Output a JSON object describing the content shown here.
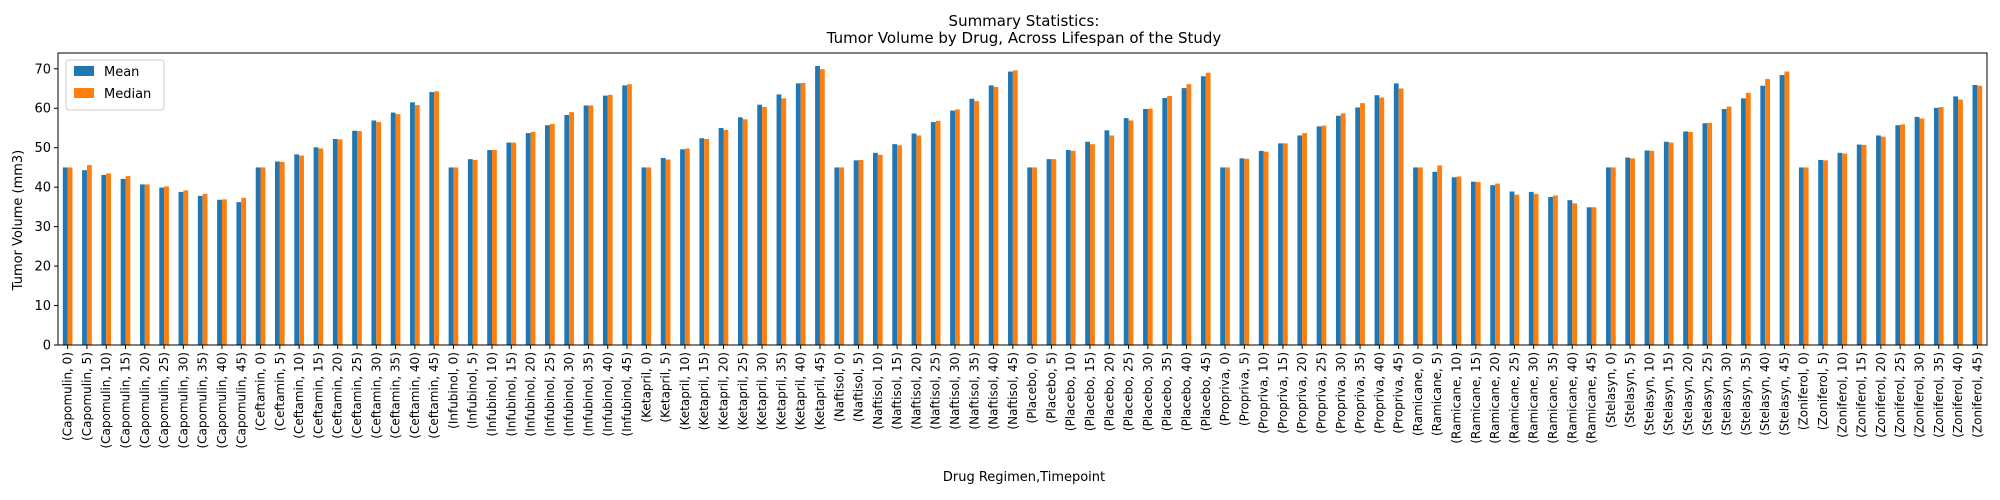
{
  "chart_data": {
    "type": "bar",
    "title": "Summary Statistics:",
    "subtitle": "Tumor Volume by Drug, Across Lifespan of the Study",
    "xlabel": "Drug Regimen,Timepoint",
    "ylabel": "Tumor Volume (mm3)",
    "ylim": [
      0,
      74
    ],
    "yticks": [
      0,
      10,
      20,
      30,
      40,
      50,
      60,
      70
    ],
    "grid": false,
    "legend_position": "top-left",
    "categories": [
      "(Capomulin, 0)",
      "(Capomulin, 5)",
      "(Capomulin, 10)",
      "(Capomulin, 15)",
      "(Capomulin, 20)",
      "(Capomulin, 25)",
      "(Capomulin, 30)",
      "(Capomulin, 35)",
      "(Capomulin, 40)",
      "(Capomulin, 45)",
      "(Ceftamin, 0)",
      "(Ceftamin, 5)",
      "(Ceftamin, 10)",
      "(Ceftamin, 15)",
      "(Ceftamin, 20)",
      "(Ceftamin, 25)",
      "(Ceftamin, 30)",
      "(Ceftamin, 35)",
      "(Ceftamin, 40)",
      "(Ceftamin, 45)",
      "(Infubinol, 0)",
      "(Infubinol, 5)",
      "(Infubinol, 10)",
      "(Infubinol, 15)",
      "(Infubinol, 20)",
      "(Infubinol, 25)",
      "(Infubinol, 30)",
      "(Infubinol, 35)",
      "(Infubinol, 40)",
      "(Infubinol, 45)",
      "(Ketapril, 0)",
      "(Ketapril, 5)",
      "(Ketapril, 10)",
      "(Ketapril, 15)",
      "(Ketapril, 20)",
      "(Ketapril, 25)",
      "(Ketapril, 30)",
      "(Ketapril, 35)",
      "(Ketapril, 40)",
      "(Ketapril, 45)",
      "(Naftisol, 0)",
      "(Naftisol, 5)",
      "(Naftisol, 10)",
      "(Naftisol, 15)",
      "(Naftisol, 20)",
      "(Naftisol, 25)",
      "(Naftisol, 30)",
      "(Naftisol, 35)",
      "(Naftisol, 40)",
      "(Naftisol, 45)",
      "(Placebo, 0)",
      "(Placebo, 5)",
      "(Placebo, 10)",
      "(Placebo, 15)",
      "(Placebo, 20)",
      "(Placebo, 25)",
      "(Placebo, 30)",
      "(Placebo, 35)",
      "(Placebo, 40)",
      "(Placebo, 45)",
      "(Propriva, 0)",
      "(Propriva, 5)",
      "(Propriva, 10)",
      "(Propriva, 15)",
      "(Propriva, 20)",
      "(Propriva, 25)",
      "(Propriva, 30)",
      "(Propriva, 35)",
      "(Propriva, 40)",
      "(Propriva, 45)",
      "(Ramicane, 0)",
      "(Ramicane, 5)",
      "(Ramicane, 10)",
      "(Ramicane, 15)",
      "(Ramicane, 20)",
      "(Ramicane, 25)",
      "(Ramicane, 30)",
      "(Ramicane, 35)",
      "(Ramicane, 40)",
      "(Ramicane, 45)",
      "(Stelasyn, 0)",
      "(Stelasyn, 5)",
      "(Stelasyn, 10)",
      "(Stelasyn, 15)",
      "(Stelasyn, 20)",
      "(Stelasyn, 25)",
      "(Stelasyn, 30)",
      "(Stelasyn, 35)",
      "(Stelasyn, 40)",
      "(Stelasyn, 45)",
      "(Zoniferol, 0)",
      "(Zoniferol, 5)",
      "(Zoniferol, 10)",
      "(Zoniferol, 15)",
      "(Zoniferol, 20)",
      "(Zoniferol, 25)",
      "(Zoniferol, 30)",
      "(Zoniferol, 35)",
      "(Zoniferol, 40)",
      "(Zoniferol, 45)"
    ],
    "series": [
      {
        "name": "Mean",
        "color": "#1f77b4",
        "values": [
          45.0,
          44.3,
          43.1,
          42.1,
          40.7,
          39.9,
          38.8,
          37.8,
          36.8,
          36.2,
          45.0,
          46.5,
          48.3,
          50.1,
          52.2,
          54.3,
          56.9,
          58.9,
          61.5,
          64.1,
          45.0,
          47.1,
          49.4,
          51.3,
          53.7,
          55.7,
          58.3,
          60.7,
          63.2,
          65.8,
          45.0,
          47.4,
          49.6,
          52.4,
          55.0,
          57.7,
          60.9,
          63.5,
          66.3,
          70.7,
          45.0,
          46.8,
          48.7,
          50.9,
          53.6,
          56.5,
          59.4,
          62.4,
          65.8,
          69.3,
          45.0,
          47.1,
          49.4,
          51.5,
          54.4,
          57.5,
          59.8,
          62.6,
          65.1,
          68.1,
          45.0,
          47.3,
          49.2,
          51.1,
          53.1,
          55.4,
          58.1,
          60.2,
          63.3,
          66.3,
          45.0,
          43.9,
          42.5,
          41.4,
          40.5,
          38.9,
          38.8,
          37.5,
          36.7,
          34.9,
          45.0,
          47.5,
          49.3,
          51.5,
          54.1,
          56.2,
          59.8,
          62.5,
          65.7,
          68.4,
          45.0,
          46.9,
          48.7,
          50.8,
          53.1,
          55.7,
          57.8,
          60.1,
          63.0,
          65.9
        ]
      },
      {
        "name": "Median",
        "color": "#ff7f0e",
        "values": [
          45.0,
          45.6,
          43.5,
          42.8,
          40.7,
          40.2,
          39.2,
          38.3,
          36.9,
          37.3,
          45.0,
          46.4,
          48.0,
          49.8,
          52.1,
          54.2,
          56.5,
          58.5,
          60.8,
          64.3,
          45.0,
          46.9,
          49.4,
          51.3,
          54.0,
          56.0,
          59.0,
          60.7,
          63.4,
          66.1,
          45.0,
          47.0,
          49.8,
          52.2,
          54.5,
          57.2,
          60.3,
          62.5,
          66.4,
          69.9,
          45.0,
          46.9,
          48.2,
          50.6,
          53.1,
          56.8,
          59.7,
          61.8,
          65.4,
          69.6,
          45.0,
          47.1,
          49.2,
          50.9,
          53.1,
          56.9,
          59.9,
          63.1,
          66.1,
          69.0,
          45.0,
          47.2,
          49.0,
          51.1,
          53.7,
          55.6,
          58.7,
          61.3,
          62.7,
          65.0,
          45.0,
          45.5,
          42.7,
          41.3,
          40.9,
          38.1,
          38.3,
          37.9,
          35.9,
          34.9,
          45.0,
          47.3,
          49.2,
          51.3,
          54.0,
          56.3,
          60.4,
          63.9,
          67.4,
          69.3,
          45.0,
          46.8,
          48.5,
          50.7,
          52.8,
          55.9,
          57.4,
          60.3,
          62.2,
          65.7
        ]
      }
    ]
  }
}
